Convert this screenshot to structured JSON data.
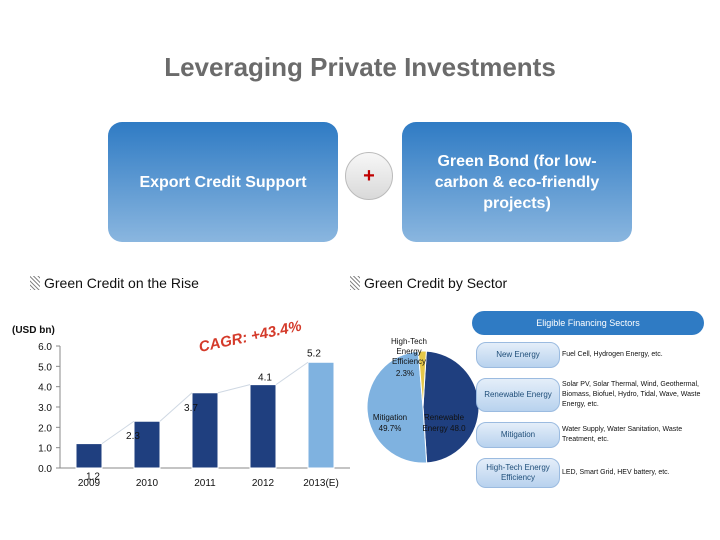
{
  "title": "Leveraging Private Investments",
  "top_boxes": {
    "export_credit": "Export Credit Support",
    "plus": "+",
    "green_bond": "Green Bond (for low-carbon & eco-friendly projects)"
  },
  "sections": {
    "left_title": "Green Credit on the Rise",
    "right_title": "Green Credit by Sector"
  },
  "chart_data": [
    {
      "type": "bar",
      "ylabel": "(USD bn)",
      "categories": [
        "2009",
        "2010",
        "2011",
        "2012",
        "2013(E)"
      ],
      "values": [
        1.2,
        2.3,
        3.7,
        4.1,
        5.2
      ],
      "value_labels": [
        "1.2",
        "2.3",
        "3.7",
        "4.1",
        "5.2"
      ],
      "yticks": [
        "0.0",
        "1.0",
        "2.0",
        "3.0",
        "4.0",
        "5.0",
        "6.0"
      ],
      "ylim": [
        0,
        6
      ],
      "annotation": "CAGR: +43.4%",
      "colors": {
        "bar": "#1f3f7f",
        "bar_estimate": "#7fb2e0",
        "annotation": "#d43a2a"
      }
    },
    {
      "type": "pie",
      "slices": [
        {
          "label": "Renewable Energy",
          "value_label": "48.0",
          "value": 48.0,
          "color": "#1f3f7f"
        },
        {
          "label": "Mitigation",
          "value_label": "49.7%",
          "value": 49.7,
          "color": "#7fb2e0"
        },
        {
          "label": "High-Tech Energy Efficiency",
          "value_label": "2.3%",
          "value": 2.3,
          "color": "#e5c84a"
        }
      ]
    }
  ],
  "sectors": {
    "header": "Eligible Financing Sectors",
    "rows": [
      {
        "name": "New Energy",
        "desc": "Fuel Cell, Hydrogen Energy, etc."
      },
      {
        "name": "Renewable Energy",
        "desc": "Solar PV, Solar Thermal, Wind, Geothermal, Biomass, Biofuel, Hydro, Tidal, Wave, Waste Energy, etc."
      },
      {
        "name": "Mitigation",
        "desc": "Water Supply, Water Sanitation, Waste Treatment, etc."
      },
      {
        "name": "High-Tech Energy Efficiency",
        "desc": "LED, Smart Grid, HEV battery, etc."
      }
    ]
  }
}
